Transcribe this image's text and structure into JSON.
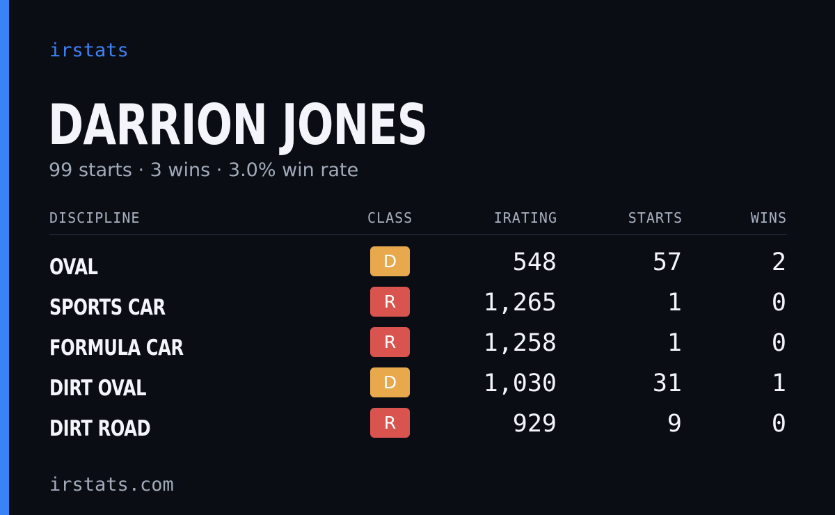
{
  "colors": {
    "background": "#0a0d14",
    "accent": "#3b82f6",
    "class_D": "#e8a84c",
    "class_R": "#d9534f"
  },
  "brand": "irstats",
  "driver": {
    "name": "DARRION JONES",
    "summary": "99 starts · 3 wins · 3.0% win rate"
  },
  "table": {
    "headers": {
      "discipline": "DISCIPLINE",
      "class": "CLASS",
      "irating": "IRATING",
      "starts": "STARTS",
      "wins": "WINS"
    },
    "rows": [
      {
        "discipline": "OVAL",
        "class": "D",
        "irating": "548",
        "starts": "57",
        "wins": "2"
      },
      {
        "discipline": "SPORTS CAR",
        "class": "R",
        "irating": "1,265",
        "starts": "1",
        "wins": "0"
      },
      {
        "discipline": "FORMULA CAR",
        "class": "R",
        "irating": "1,258",
        "starts": "1",
        "wins": "0"
      },
      {
        "discipline": "DIRT OVAL",
        "class": "D",
        "irating": "1,030",
        "starts": "31",
        "wins": "1"
      },
      {
        "discipline": "DIRT ROAD",
        "class": "R",
        "irating": "929",
        "starts": "9",
        "wins": "0"
      }
    ]
  },
  "footer": "irstats.com"
}
